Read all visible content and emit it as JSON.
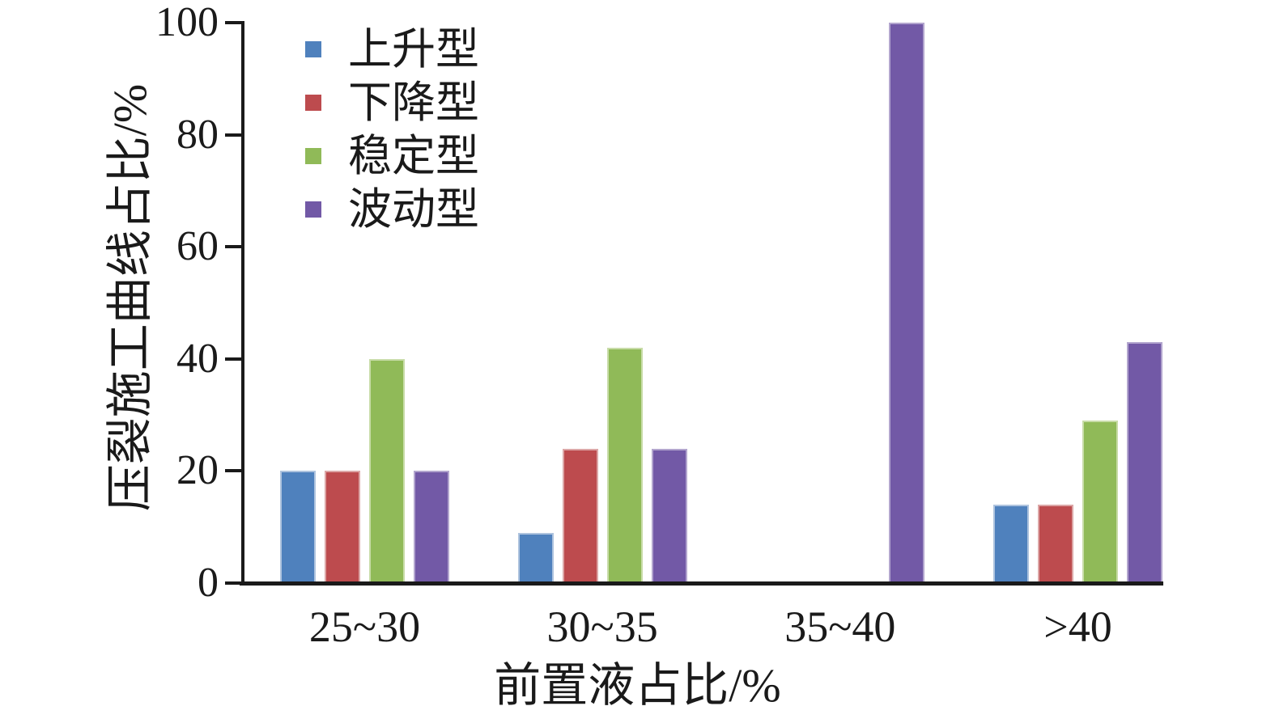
{
  "chart_data": {
    "type": "bar",
    "title": "",
    "categories": [
      "25~30",
      "30~35",
      "35~40",
      ">40"
    ],
    "series": [
      {
        "name": "上升型",
        "color": "#4F81BD",
        "edge": "#AEC3DE",
        "values": [
          20,
          9,
          0,
          14
        ]
      },
      {
        "name": "下降型",
        "color": "#BD4B4E",
        "edge": "#DCA6A6",
        "values": [
          20,
          24,
          0,
          14
        ]
      },
      {
        "name": "稳定型",
        "color": "#90BA58",
        "edge": "#C8DCA8",
        "values": [
          40,
          42,
          0,
          29
        ]
      },
      {
        "name": "波动型",
        "color": "#7259A6",
        "edge": "#B2A5CE",
        "values": [
          20,
          24,
          100,
          43
        ]
      }
    ],
    "xlabel": "前置液占比/%",
    "ylabel": "压裂施工曲线占比/%",
    "ylim": [
      0,
      100
    ],
    "yticks": [
      "0",
      "20",
      "40",
      "60",
      "80",
      "100"
    ],
    "legend_position": "upper-left-inside",
    "grid": false,
    "axis_color": "#1a1a1a",
    "background_color": "#ffffff"
  }
}
